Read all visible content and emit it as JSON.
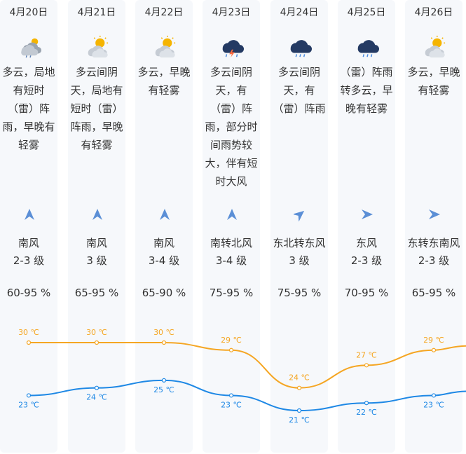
{
  "days": [
    {
      "date": "4月20日",
      "icon": "cloudy-rain-icon",
      "desc": "多云，局地\n有短时\n（雷）阵\n雨，早晚有\n轻雾",
      "wind_dir": "南风",
      "wind_level": "2-3 级",
      "humidity": "60-95 %",
      "high": "30 ℃",
      "low": "23 ℃"
    },
    {
      "date": "4月21日",
      "icon": "partly-cloudy-icon",
      "desc": "多云间阴\n天，局地有\n短时（雷）\n阵雨，早晚\n有轻雾",
      "wind_dir": "南风",
      "wind_level": "3 级",
      "humidity": "65-95 %",
      "high": "30 ℃",
      "low": "24 ℃"
    },
    {
      "date": "4月22日",
      "icon": "partly-cloudy-icon",
      "desc": "多云，早晚\n有轻雾",
      "wind_dir": "南风",
      "wind_level": "3-4 级",
      "humidity": "65-90 %",
      "high": "30 ℃",
      "low": "25 ℃"
    },
    {
      "date": "4月23日",
      "icon": "thunderstorm-icon",
      "desc": "多云间阴\n天，有\n（雷）阵\n雨，部分时\n间雨势较\n大，伴有短\n时大风",
      "wind_dir": "南转北风",
      "wind_level": "3-4 级",
      "humidity": "75-95 %",
      "high": "29 ℃",
      "low": "23 ℃"
    },
    {
      "date": "4月24日",
      "icon": "rain-cloud-icon",
      "desc": "多云间阴\n天，有\n（雷）阵雨",
      "wind_dir": "东北转东风",
      "wind_level": "3 级",
      "humidity": "75-95 %",
      "high": "24 ℃",
      "low": "21 ℃"
    },
    {
      "date": "4月25日",
      "icon": "rain-cloud-icon",
      "desc": "（雷）阵雨\n转多云，早\n晚有轻雾",
      "wind_dir": "东风",
      "wind_level": "2-3 级",
      "humidity": "70-95 %",
      "high": "27 ℃",
      "low": "22 ℃"
    },
    {
      "date": "4月26日",
      "icon": "partly-cloudy-icon",
      "desc": "多云，早晚\n有轻雾",
      "wind_dir": "东转东南风",
      "wind_level": "2-3 级",
      "humidity": "65-95 %",
      "high": "29 ℃",
      "low": "23 ℃"
    }
  ],
  "wind_arrows": [
    "north",
    "north",
    "north",
    "north",
    "north-east",
    "east",
    "east"
  ],
  "colors": {
    "high_line": "#f5a623",
    "low_line": "#1e88e5",
    "column_bg": "#f6f8fb"
  },
  "chart_data": {
    "type": "line",
    "categories": [
      "4月20日",
      "4月21日",
      "4月22日",
      "4月23日",
      "4月24日",
      "4月25日",
      "4月26日"
    ],
    "series": [
      {
        "values": [
          30,
          30,
          30,
          29,
          24,
          27,
          29
        ]
      },
      {
        "values": [
          23,
          24,
          25,
          23,
          21,
          22,
          23
        ]
      }
    ],
    "title": "",
    "xlabel": "",
    "ylabel": ""
  }
}
